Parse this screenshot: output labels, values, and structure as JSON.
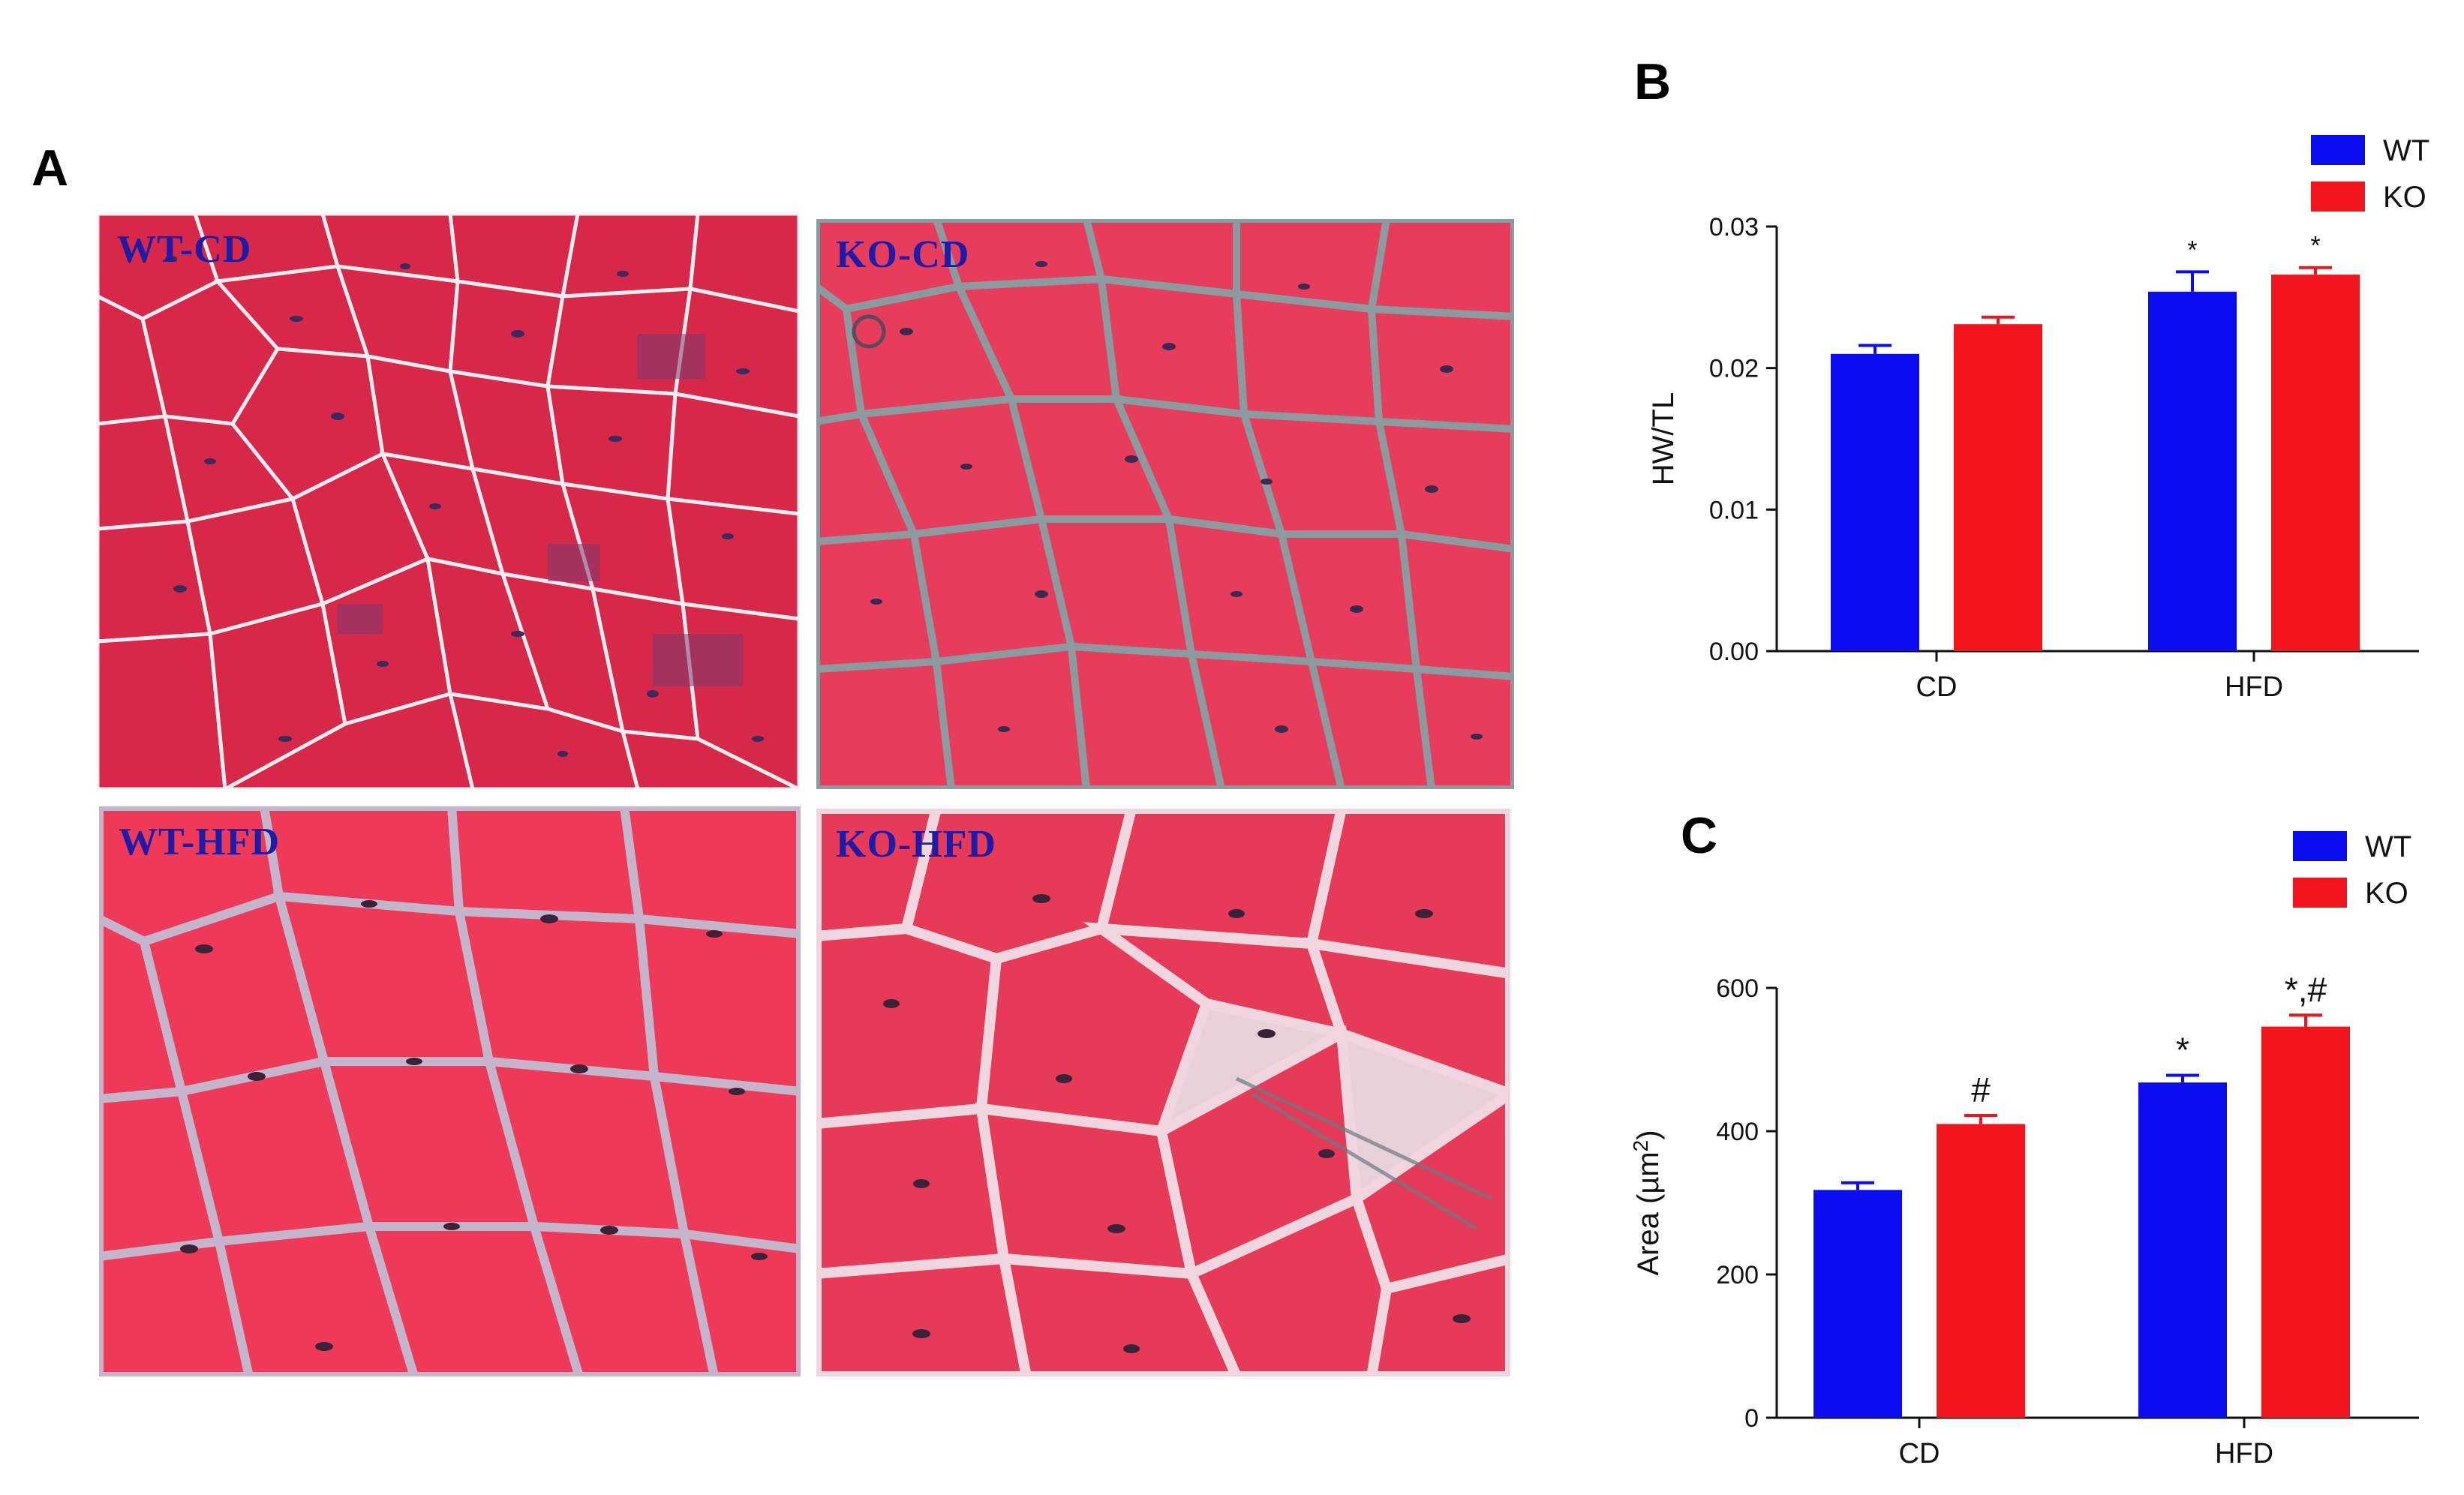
{
  "figure": {
    "panels": {
      "a": {
        "letter": "A"
      },
      "b": {
        "letter": "B"
      },
      "c": {
        "letter": "C"
      }
    },
    "micrographs": [
      {
        "label": "WT-CD",
        "stain": "H&E",
        "tissue_color": "#d8284a"
      },
      {
        "label": "KO-CD",
        "stain": "H&E",
        "tissue_color": "#e83c5c"
      },
      {
        "label": "WT-HFD",
        "stain": "H&E",
        "tissue_color": "#ee3a58"
      },
      {
        "label": "KO-HFD",
        "stain": "H&E",
        "tissue_color": "#e63a58"
      }
    ]
  },
  "colors": {
    "WT": "#0c0cf0",
    "KO": "#f2141c",
    "label_blue": "#1c1ca8"
  },
  "chart_data": [
    {
      "panel": "B",
      "type": "bar",
      "categories": [
        "CD",
        "HFD"
      ],
      "series": [
        {
          "name": "WT",
          "values": [
            0.021,
            0.0254
          ],
          "errors": [
            0.0006,
            0.0014
          ],
          "sig": [
            "",
            "*"
          ]
        },
        {
          "name": "KO",
          "values": [
            0.0231,
            0.0266
          ],
          "errors": [
            0.0005,
            0.0005
          ],
          "sig": [
            "",
            "*"
          ]
        }
      ],
      "xlabel": "",
      "ylabel": "HW/TL",
      "ylim": [
        0,
        0.03
      ],
      "yticks": [
        0.0,
        0.01,
        0.02,
        0.03
      ],
      "ytick_labels": [
        "0.00",
        "0.01",
        "0.02",
        "0.03"
      ],
      "legend": [
        "WT",
        "KO"
      ],
      "legend_position": "top-right"
    },
    {
      "panel": "C",
      "type": "bar",
      "categories": [
        "CD",
        "HFD"
      ],
      "series": [
        {
          "name": "WT",
          "values": [
            318,
            468
          ],
          "errors": [
            10,
            10
          ],
          "sig": [
            "",
            "*"
          ]
        },
        {
          "name": "KO",
          "values": [
            410,
            546
          ],
          "errors": [
            12,
            16
          ],
          "sig": [
            "#",
            "*,#"
          ]
        }
      ],
      "xlabel": "",
      "ylabel": "Area (µm²)",
      "ylim": [
        0,
        600
      ],
      "yticks": [
        0,
        200,
        400,
        600
      ],
      "ytick_labels": [
        "0",
        "200",
        "400",
        "600"
      ],
      "legend": [
        "WT",
        "KO"
      ],
      "legend_position": "top-right"
    }
  ]
}
